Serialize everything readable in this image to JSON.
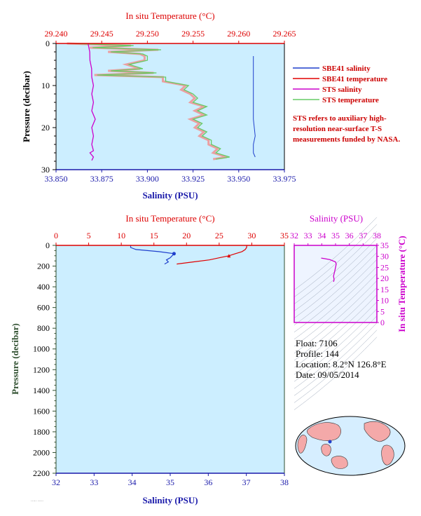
{
  "colors": {
    "plot_bg": "#cceeff",
    "salinity_axis": "#1a1aaa",
    "temperature_axis": "#dd0000",
    "pressure_axis": "#000000",
    "pressure_label_bottom": "#2f4f2f",
    "sbe_salinity": "#1f3fcc",
    "sbe_temperature": "#e00000",
    "sts_salinity": "#cc00cc",
    "sts_temperature": "#66cc66",
    "sts_temperature_fill": "#f09090",
    "ts_axis": "#cc00cc"
  },
  "chart_data": [
    {
      "id": "top",
      "type": "line",
      "top_axis_label": "In situ Temperature (°C)",
      "bottom_axis_label": "Salinity (PSU)",
      "left_axis_label": "Pressure (decibar)",
      "temp_ticks": [
        "29.240",
        "29.245",
        "29.250",
        "29.255",
        "29.260",
        "29.265"
      ],
      "sal_ticks": [
        "33.850",
        "33.875",
        "33.900",
        "33.925",
        "33.950",
        "33.975"
      ],
      "pres_ticks": [
        "0",
        "10",
        "20",
        "30"
      ],
      "temp_range": [
        29.24,
        29.265
      ],
      "sal_range": [
        33.85,
        33.975
      ],
      "pres_range": [
        0,
        30
      ],
      "legend": [
        "SBE41 salinity",
        "SBE41 temperature",
        "STS salinity",
        "STS temperature"
      ],
      "note": "STS refers to auxiliary high-resolution near-surface T-S measurements funded by NASA.",
      "sts_salinity": {
        "pres": [
          0,
          2,
          4,
          6,
          8,
          10,
          12,
          14,
          16,
          18,
          20,
          22,
          24,
          25.5,
          26,
          27,
          27.8
        ],
        "sal": [
          33.868,
          33.868,
          33.869,
          33.869,
          33.87,
          33.87,
          33.87,
          33.87,
          33.87,
          33.871,
          33.87,
          33.87,
          33.87,
          33.87,
          33.869,
          33.87,
          33.87
        ]
      },
      "sbe_salinity": {
        "pres": [
          3,
          6,
          10,
          14,
          18,
          22,
          24,
          26,
          27
        ],
        "sal": [
          33.958,
          33.958,
          33.958,
          33.958,
          33.958,
          33.959,
          33.958,
          33.958,
          33.959
        ]
      },
      "sts_temperature": {
        "pres": [
          0,
          0.5,
          1,
          1.5,
          2,
          2.5,
          3,
          4,
          5,
          6,
          6.5,
          7,
          7.5,
          8,
          9,
          10,
          11,
          12,
          13,
          14,
          15,
          16,
          17,
          18,
          19,
          20,
          21,
          22,
          23,
          24,
          25,
          26,
          27,
          27.5
        ],
        "temp": [
          29.2415,
          29.2485,
          29.244,
          29.2515,
          29.246,
          29.2495,
          29.25,
          29.25,
          29.248,
          29.2495,
          29.246,
          29.251,
          29.2445,
          29.252,
          29.252,
          29.2545,
          29.254,
          29.255,
          29.2555,
          29.255,
          29.2565,
          29.2555,
          29.2565,
          29.255,
          29.256,
          29.2555,
          29.2565,
          29.256,
          29.257,
          29.257,
          29.258,
          29.2575,
          29.259,
          29.2575
        ]
      }
    },
    {
      "id": "bottom",
      "type": "line",
      "top_axis_label": "In situ Temperature (°C)",
      "bottom_axis_label": "Salinity (PSU)",
      "left_axis_label": "Pressure (decibar)",
      "temp_ticks": [
        "0",
        "5",
        "10",
        "15",
        "20",
        "25",
        "30",
        "35"
      ],
      "sal_ticks": [
        "32",
        "33",
        "34",
        "35",
        "36",
        "37",
        "38"
      ],
      "pres_ticks": [
        "0",
        "200",
        "400",
        "600",
        "800",
        "1000",
        "1200",
        "1400",
        "1600",
        "1800",
        "2000",
        "2200"
      ],
      "temp_range": [
        0,
        35
      ],
      "sal_range": [
        32,
        38
      ],
      "pres_range": [
        0,
        2200
      ],
      "salinity_profile": {
        "pres": [
          0,
          20,
          40,
          60,
          80,
          100,
          120,
          140,
          160,
          180
        ],
        "sal": [
          33.96,
          33.96,
          34.1,
          34.7,
          35.1,
          35.05,
          35.0,
          34.9,
          34.95,
          34.85
        ]
      },
      "temperature_profile": {
        "pres": [
          0,
          20,
          40,
          60,
          80,
          100,
          120,
          140,
          160,
          180
        ],
        "temp": [
          29.25,
          29.2,
          29.0,
          28.5,
          27.5,
          26.5,
          25.0,
          23.5,
          21.0,
          18.5
        ]
      }
    },
    {
      "id": "ts",
      "type": "line",
      "top_axis_label": "Salinity (PSU)",
      "right_axis_label": "In situ Temperature (°C)",
      "sal_ticks": [
        "32",
        "33",
        "34",
        "35",
        "36",
        "37",
        "38"
      ],
      "temp_ticks": [
        "0",
        "5",
        "10",
        "15",
        "20",
        "25",
        "30",
        "35"
      ],
      "sal_range": [
        32,
        38
      ],
      "temp_range": [
        0,
        35
      ],
      "ts_profile": {
        "sal": [
          33.96,
          34.2,
          34.6,
          35.0,
          35.05,
          35.0,
          34.95,
          34.85,
          34.9,
          34.85
        ],
        "temp": [
          29.25,
          29.0,
          28.5,
          27.5,
          26.5,
          25.0,
          23.5,
          21.0,
          19.5,
          18.5
        ]
      }
    }
  ],
  "float_info": {
    "float": "Float:  7106",
    "profile": "Profile:  144",
    "location": "Location:  8.2°N  126.8°E",
    "date": "Date:  09/05/2014"
  }
}
